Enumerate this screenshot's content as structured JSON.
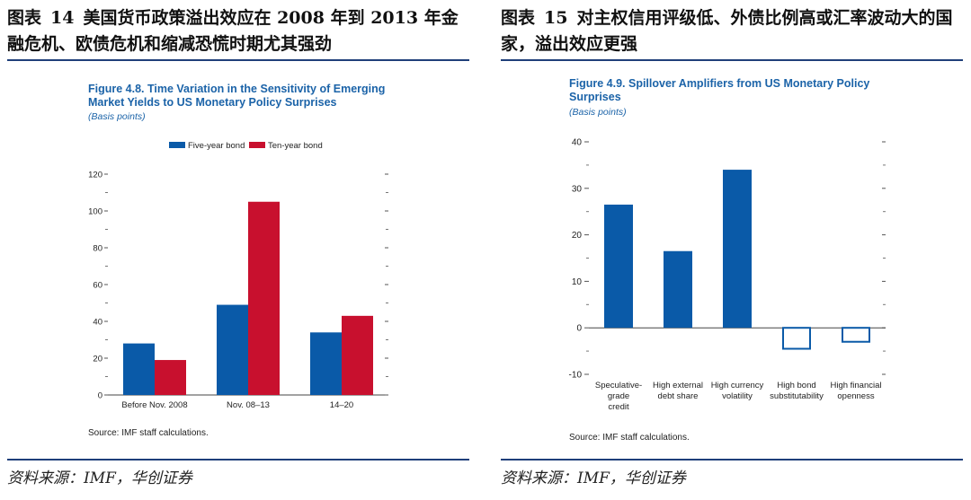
{
  "left_panel": {
    "heading_label": "图表",
    "heading_number": "14",
    "heading_text": "美国货币政策溢出效应在 2008 年到 2013 年金融危机、欧债危机和缩减恐慌时期尤其强劲",
    "source": "资料来源：IMF，华创证券",
    "figure_title": "Figure 4.8.  Time Variation in the Sensitivity of Emerging Market Yields to US Monetary Policy Surprises",
    "figure_subtitle": "(Basis points)",
    "note": "Source: IMF staff calculations."
  },
  "right_panel": {
    "heading_label": "图表",
    "heading_number": "15",
    "heading_text": "对主权信用评级低、外债比例高或汇率波动大的国家，溢出效应更强",
    "source": "资料来源：IMF，华创证券",
    "figure_title": "Figure 4.9.  Spillover Amplifiers from US Monetary Policy Surprises",
    "figure_subtitle": "(Basis points)",
    "note": "Source: IMF staff calculations."
  },
  "colors": {
    "blue": "#0a5aa8",
    "red": "#c8102e",
    "rule": "#1f3f7a",
    "title_blue": "#1b63a8"
  },
  "chart_data": [
    {
      "type": "bar",
      "title": "Figure 4.8.  Time Variation in the Sensitivity of Emerging Market Yields to US Monetary Policy Surprises",
      "ylabel": "Basis points",
      "categories": [
        "Before Nov. 2008",
        "Nov. 08–13",
        "14–20"
      ],
      "series": [
        {
          "name": "Five-year bond",
          "color": "#0a5aa8",
          "values": [
            28,
            49,
            34
          ]
        },
        {
          "name": "Ten-year bond",
          "color": "#c8102e",
          "values": [
            19,
            105,
            43
          ]
        }
      ],
      "ylim": [
        0,
        120
      ],
      "yticks": [
        0,
        20,
        40,
        60,
        80,
        100,
        120
      ],
      "legend": "top-center"
    },
    {
      "type": "bar",
      "title": "Figure 4.9.  Spillover Amplifiers from US Monetary Policy Surprises",
      "ylabel": "Basis points",
      "categories": [
        "Speculative-grade credit",
        "High external debt share",
        "High currency volatility",
        "High bond substitutability",
        "High financial openness"
      ],
      "category_lines": [
        [
          "Speculative-",
          "grade",
          "credit"
        ],
        [
          "High external",
          "debt share"
        ],
        [
          "High currency",
          "volatility"
        ],
        [
          "High bond",
          "substitutability"
        ],
        [
          "High financial",
          "openness"
        ]
      ],
      "values": [
        26.5,
        16.5,
        34,
        -4.5,
        -3
      ],
      "color": "#0a5aa8",
      "negative_style": "outline",
      "ylim": [
        -10,
        40
      ],
      "yticks": [
        -10,
        0,
        10,
        20,
        30,
        40
      ]
    }
  ]
}
